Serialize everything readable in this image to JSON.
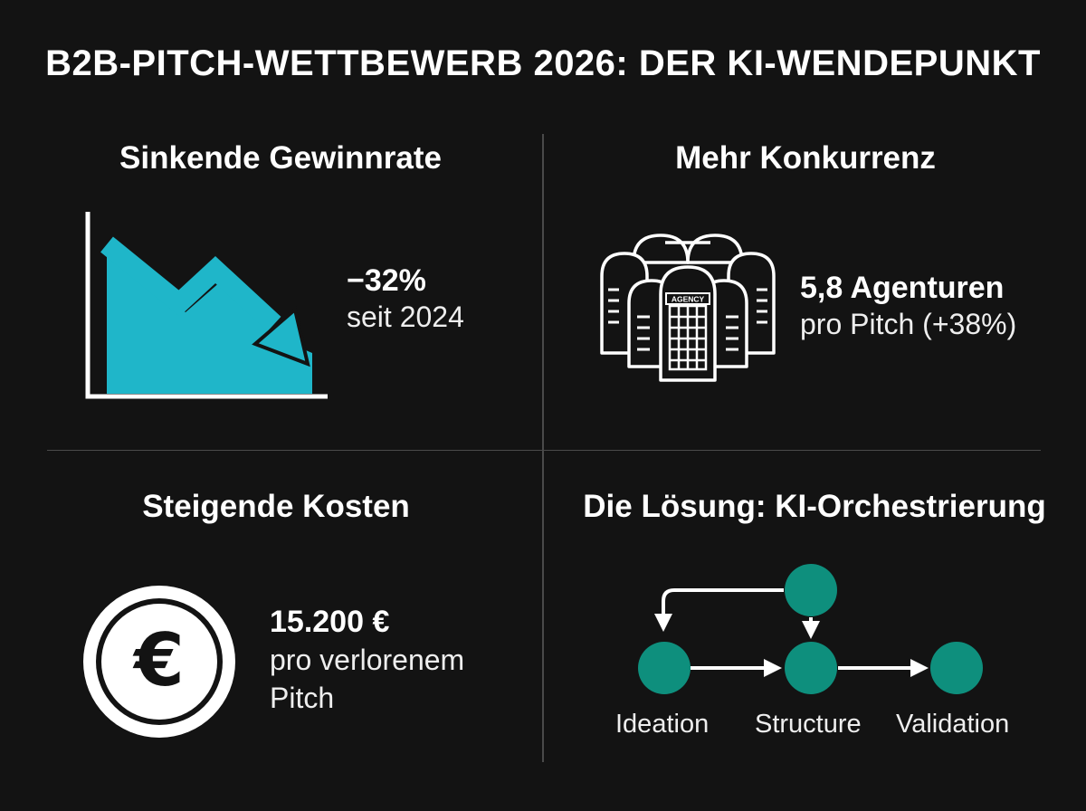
{
  "title": "B2B-PITCH-WETTBEWERB 2026: DER KI-WENDEPUNKT",
  "panels": {
    "win_rate": {
      "heading": "Sinkende Gewinnrate",
      "value": "−32%",
      "subtext": "seit 2024",
      "icon": "declining-chart-icon"
    },
    "competition": {
      "heading": "Mehr Konkurrenz",
      "value": "5,8 Agenturen",
      "subtext": "pro Pitch (+38%)",
      "icon": "agency-buildings-icon",
      "building_label": "AGENCY"
    },
    "costs": {
      "heading": "Steigende Kosten",
      "value": "15.200 €",
      "subtext_line1": "pro verlorenem",
      "subtext_line2": "Pitch",
      "icon": "euro-coin-icon",
      "currency_symbol": "€"
    },
    "solution": {
      "heading": "Die Lösung: KI-Orchestrierung",
      "icon": "workflow-diagram-icon",
      "steps": [
        "Ideation",
        "Structure",
        "Validation"
      ]
    }
  },
  "colors": {
    "background": "#131313",
    "chart_fill": "#1fb6c9",
    "node_fill": "#0e8f7d",
    "line": "#ffffff"
  }
}
